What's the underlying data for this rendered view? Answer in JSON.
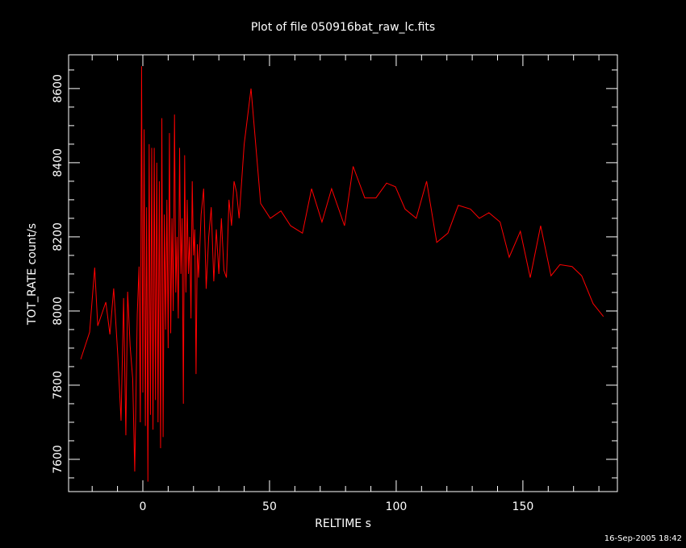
{
  "chart_data": {
    "type": "line",
    "title": "Plot of file 050916bat_raw_lc.fits",
    "x_label": "RELTIME  s",
    "y_label": "TOT_RATE  count/s",
    "footer": "16-Sep-2005 18:42",
    "xlim": [
      -29.3,
      187.3
    ],
    "ylim": [
      7513,
      8691
    ],
    "xticks": [
      0,
      50,
      100,
      150
    ],
    "yticks": [
      7600,
      7800,
      8000,
      8200,
      8400,
      8600
    ],
    "xminor_ticks": [
      -20,
      -10,
      10,
      20,
      30,
      40,
      60,
      70,
      80,
      90,
      110,
      120,
      130,
      140,
      160,
      170,
      180
    ],
    "yminor_ticks": [
      7550,
      7650,
      7700,
      7750,
      7850,
      7900,
      7950,
      8050,
      8100,
      8150,
      8250,
      8300,
      8350,
      8450,
      8500,
      8550,
      8650
    ],
    "series": [
      {
        "name": "TOT_RATE",
        "color": "#ff0000",
        "x": [
          -24.5,
          -21,
          -19,
          -17.8,
          -14.6,
          -13,
          -11.5,
          -9.9,
          -8.6,
          -7.6,
          -6.7,
          -6,
          -5,
          -4,
          -3.2,
          -2.2,
          -1.5,
          -1,
          -0.5,
          0,
          0.5,
          1,
          1.5,
          2,
          2.5,
          3,
          3.5,
          4,
          4.5,
          5,
          5.5,
          6,
          6.5,
          7,
          7.5,
          8,
          8.5,
          9,
          9.5,
          10,
          10.5,
          11,
          11.5,
          12,
          12.5,
          13,
          13.5,
          14,
          14.5,
          15,
          15.5,
          16,
          16.5,
          17,
          17.5,
          18,
          18.5,
          19,
          19.5,
          20,
          20.5,
          21,
          21.5,
          22,
          23,
          24,
          25,
          26,
          27,
          28,
          29,
          30,
          31,
          32,
          33,
          34,
          35,
          36,
          37,
          38,
          39,
          40,
          42.7,
          46.5,
          50.3,
          54.5,
          58.3,
          63,
          66.6,
          70.7,
          74.5,
          79.6,
          83,
          87.6,
          92,
          96.2,
          99.7,
          103.5,
          107.9,
          112,
          116,
          120.4,
          124.5,
          129.3,
          132.8,
          136.6,
          141,
          144.6,
          149,
          152.9,
          157,
          161.1,
          164.6,
          169.4,
          173.2,
          177.7,
          181.8
        ],
        "values": [
          7870,
          7943,
          8117,
          7960,
          8024,
          7937,
          8061,
          7883,
          7704,
          8035,
          7665,
          8052,
          7904,
          7817,
          7567,
          7991,
          8120,
          7700,
          8660,
          7780,
          8490,
          7690,
          8280,
          7540,
          8450,
          7720,
          8440,
          7680,
          8440,
          7760,
          8400,
          7700,
          8350,
          7630,
          8520,
          7660,
          8260,
          7950,
          8300,
          7900,
          8480,
          7940,
          8250,
          8000,
          8530,
          8050,
          8200,
          7980,
          8440,
          8100,
          8250,
          7750,
          8420,
          8050,
          8300,
          8100,
          8200,
          7980,
          8350,
          8150,
          8220,
          7830,
          8180,
          8090,
          8260,
          8330,
          8060,
          8200,
          8280,
          8080,
          8220,
          8100,
          8250,
          8110,
          8090,
          8300,
          8230,
          8350,
          8320,
          8250,
          8350,
          8450,
          8600,
          8290,
          8250,
          8270,
          8230,
          8210,
          8330,
          8240,
          8330,
          8230,
          8390,
          8305,
          8305,
          8345,
          8335,
          8275,
          8250,
          8350,
          8185,
          8210,
          8285,
          8275,
          8250,
          8265,
          8240,
          8145,
          8215,
          8090,
          8230,
          8095,
          8125,
          8120,
          8095,
          8020,
          7985
        ]
      }
    ]
  }
}
